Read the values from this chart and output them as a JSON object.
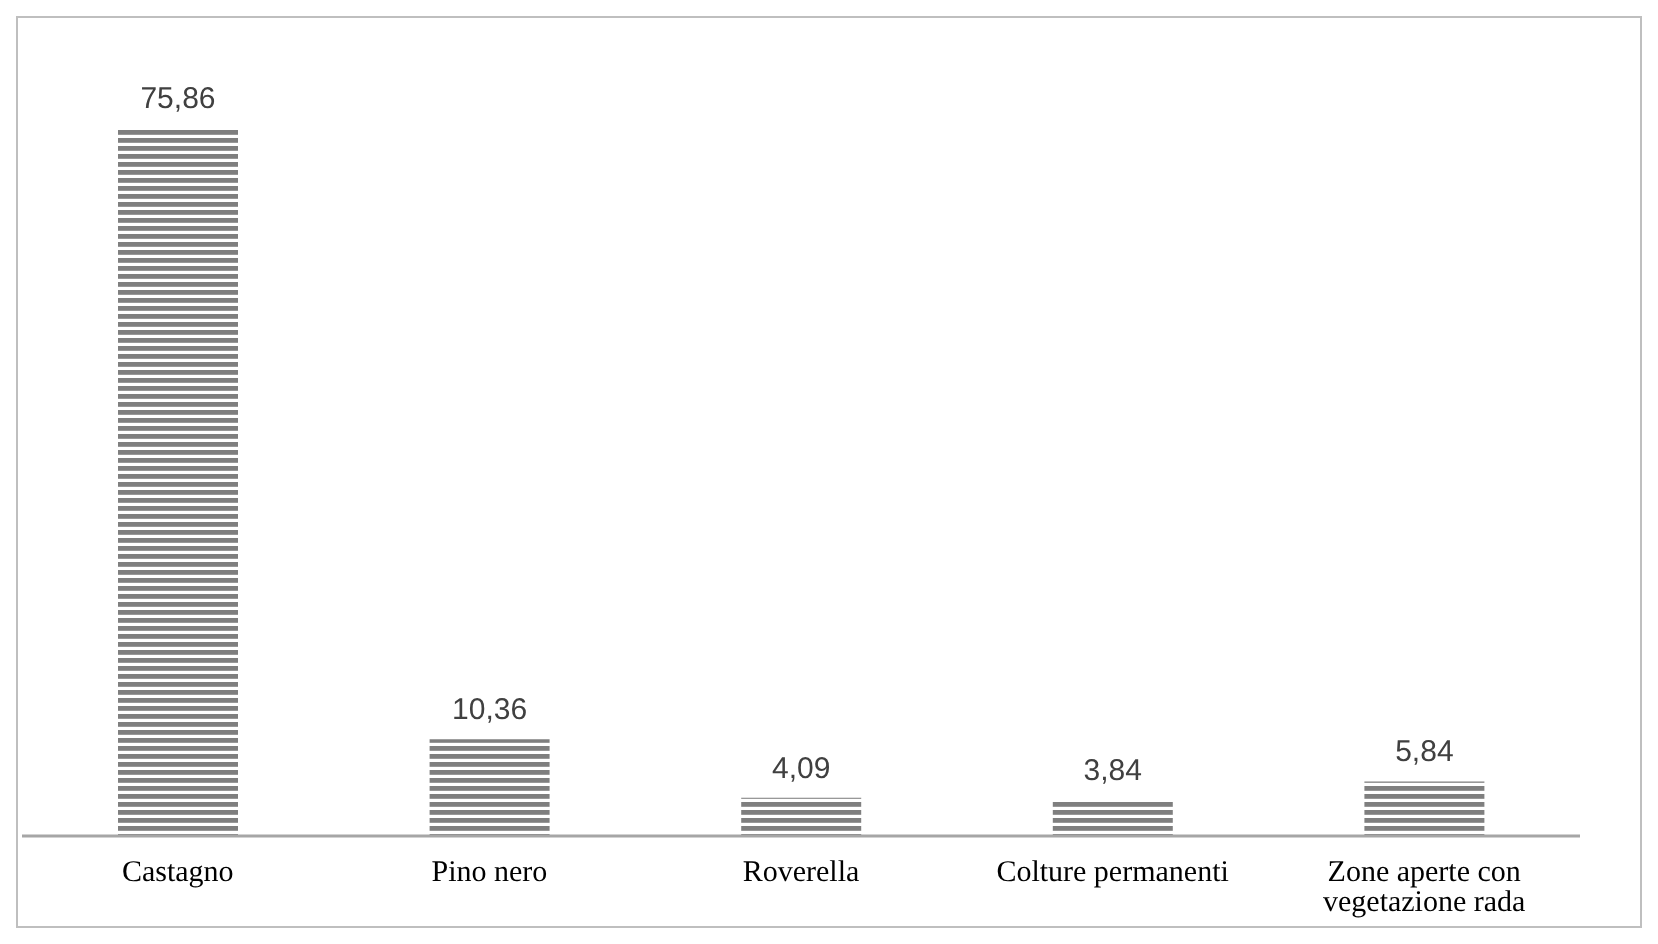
{
  "chart_data": {
    "type": "bar",
    "categories": [
      "Castagno",
      "Pino nero",
      "Roverella",
      "Colture permanenti",
      "Zone aperte con vegetazione rada"
    ],
    "values": [
      75.86,
      10.36,
      4.09,
      3.84,
      5.84
    ],
    "value_labels": [
      "75,86",
      "10,36",
      "4,09",
      "3,84",
      "5,84"
    ],
    "color": "#7f7f7f"
  }
}
